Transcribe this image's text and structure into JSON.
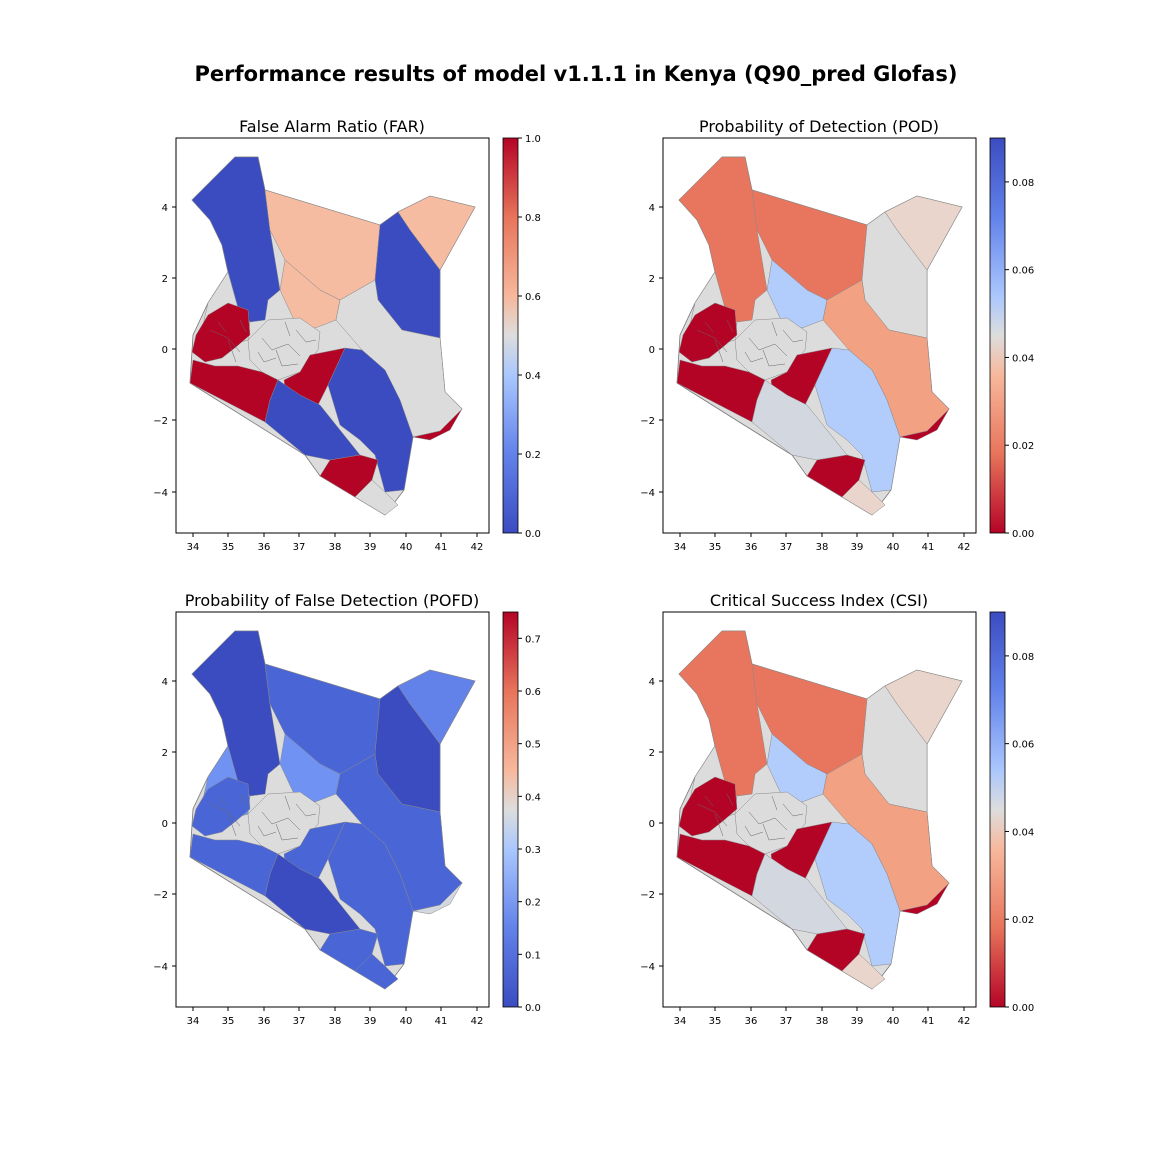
{
  "title": "Performance results of model v1.1.1 in Kenya (Q90_pred Glofas)",
  "colors": {
    "dark_red": "#b40426",
    "red": "#e8765e",
    "salmon": "#f2a183",
    "peach": "#f6bca1",
    "beige": "#e9d5cb",
    "grey": "#dcdcdc",
    "light_grey": "#d3d7df",
    "light_blue": "#b2ccfb",
    "blue_mid": "#6f92f3",
    "blue": "#6282ea",
    "blue_dark": "#4a66d6",
    "navy": "#3b4cc0"
  },
  "x_ticks": [
    "34",
    "35",
    "36",
    "37",
    "38",
    "39",
    "40",
    "41",
    "42"
  ],
  "y_ticks": [
    "4",
    "2",
    "0",
    "−2",
    "−4"
  ],
  "panels": [
    {
      "title": "False Alarm Ratio (FAR)",
      "metric": "FAR",
      "colorbar_ticks": [
        "1.0",
        "0.8",
        "0.6",
        "0.4",
        "0.2",
        "0.0"
      ],
      "colorbar_range": [
        0.0,
        1.0
      ],
      "regions": {
        "northwest": "navy",
        "north_central": "peach",
        "northeast_top": "peach",
        "northeast": "navy",
        "west_grey": "grey",
        "west_red": "dark_red",
        "central_grey": "grey",
        "center": "peach",
        "central_red": "dark_red",
        "east_grey": "grey",
        "south_west_red": "dark_red",
        "south_blue": "navy",
        "east_blue": "navy",
        "coast_red": "dark_red",
        "taita_red": "dark_red",
        "coast_south": "grey"
      }
    },
    {
      "title": "Probability of Detection (POD)",
      "metric": "POD",
      "colorbar_ticks": [
        "0.08",
        "0.06",
        "0.04",
        "0.02",
        "0.00"
      ],
      "colorbar_range": [
        0.0,
        0.09
      ],
      "regions": {
        "northwest": "red",
        "north_central": "red",
        "northeast_top": "beige",
        "northeast": "grey",
        "west_grey": "grey",
        "west_red": "dark_red",
        "central_grey": "grey",
        "center": "light_blue",
        "central_red": "dark_red",
        "east_grey": "salmon",
        "south_west_red": "dark_red",
        "south_blue": "light_grey",
        "east_blue": "light_blue",
        "coast_red": "dark_red",
        "taita_red": "dark_red",
        "coast_south": "beige"
      }
    },
    {
      "title": "Probability of False Detection (POFD)",
      "metric": "POFD",
      "colorbar_ticks": [
        "0.7",
        "0.6",
        "0.5",
        "0.4",
        "0.3",
        "0.2",
        "0.1",
        "0.0"
      ],
      "colorbar_range": [
        0.0,
        0.75
      ],
      "regions": {
        "northwest": "navy",
        "north_central": "blue_dark",
        "northeast_top": "blue",
        "northeast": "navy",
        "west_grey": "blue_mid",
        "west_red": "blue_dark",
        "central_grey": "grey",
        "center": "blue_mid",
        "central_red": "blue_dark",
        "east_grey": "blue_dark",
        "south_west_red": "blue_dark",
        "south_blue": "navy",
        "east_blue": "blue_dark",
        "coast_red": "light_grey",
        "taita_red": "blue_dark",
        "coast_south": "blue_dark"
      }
    },
    {
      "title": "Critical Success Index (CSI)",
      "metric": "CSI",
      "colorbar_ticks": [
        "0.08",
        "0.06",
        "0.04",
        "0.02",
        "0.00"
      ],
      "colorbar_range": [
        0.0,
        0.09
      ],
      "regions": {
        "northwest": "red",
        "north_central": "red",
        "northeast_top": "beige",
        "northeast": "grey",
        "west_grey": "grey",
        "west_red": "dark_red",
        "central_grey": "grey",
        "center": "light_blue",
        "central_red": "dark_red",
        "east_grey": "salmon",
        "south_west_red": "dark_red",
        "south_blue": "light_grey",
        "east_blue": "light_blue",
        "coast_red": "dark_red",
        "taita_red": "dark_red",
        "coast_south": "beige"
      }
    }
  ]
}
